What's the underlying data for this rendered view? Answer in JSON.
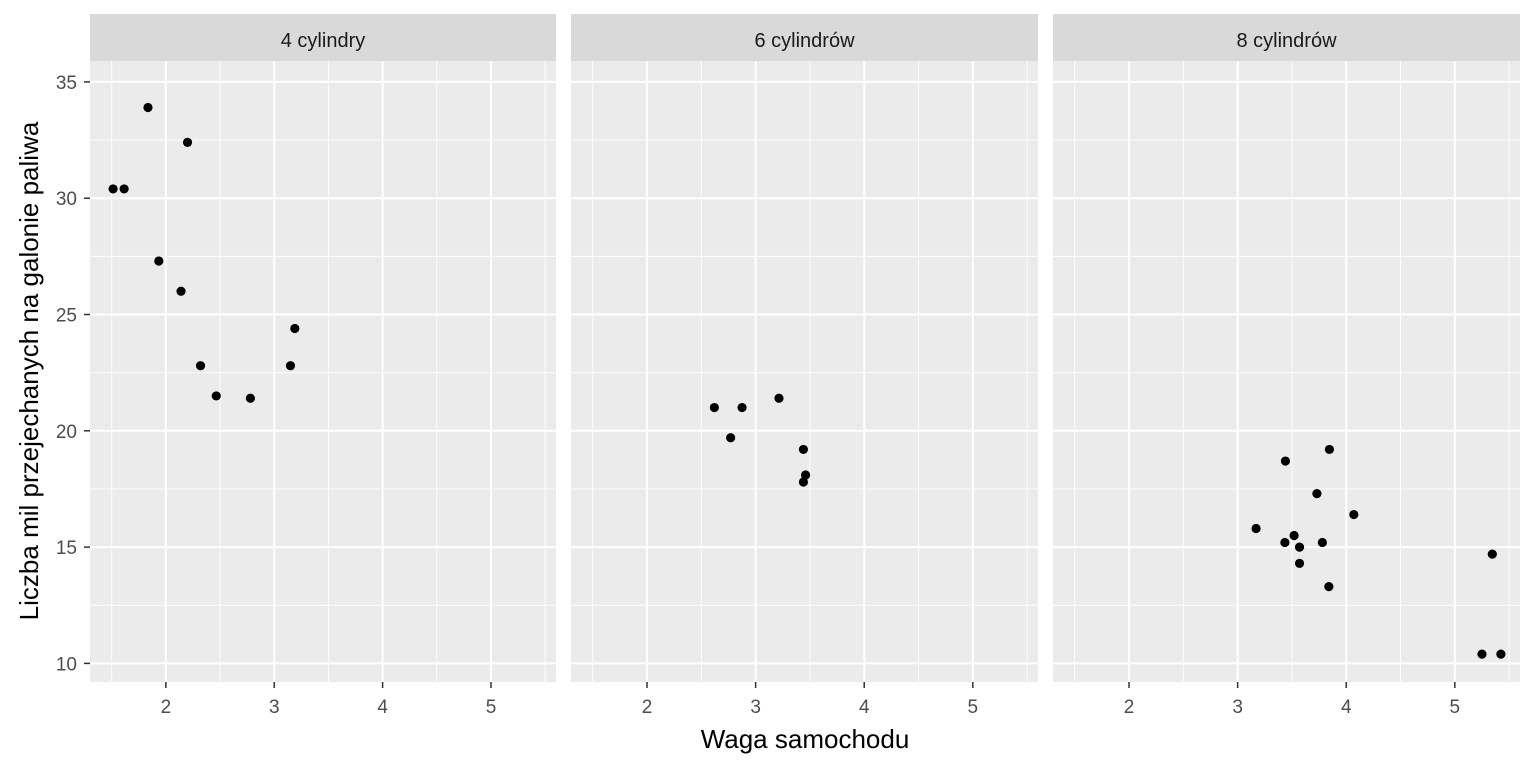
{
  "chart_data": {
    "type": "scatter",
    "facet_by": "cylinders",
    "xlabel": "Waga samochodu",
    "ylabel": "Liczba mil przejechanych na galonie paliwa",
    "xlim": [
      1.3,
      5.6
    ],
    "ylim": [
      9.2,
      35.9
    ],
    "x_ticks": [
      2,
      3,
      4,
      5
    ],
    "y_ticks": [
      10,
      15,
      20,
      25,
      30,
      35
    ],
    "grid": true,
    "colors": {
      "panel_bg": "#ebebeb",
      "strip_bg": "#d9d9d9",
      "grid": "#ffffff",
      "point": "#000000",
      "tick_text": "#4d4d4d"
    },
    "panels": [
      {
        "label": "4 cylindry",
        "points": [
          {
            "x": 1.513,
            "y": 30.4
          },
          {
            "x": 1.615,
            "y": 30.4
          },
          {
            "x": 1.835,
            "y": 33.9
          },
          {
            "x": 1.935,
            "y": 27.3
          },
          {
            "x": 2.14,
            "y": 26.0
          },
          {
            "x": 2.2,
            "y": 32.4
          },
          {
            "x": 2.32,
            "y": 22.8
          },
          {
            "x": 2.465,
            "y": 21.5
          },
          {
            "x": 2.78,
            "y": 21.4
          },
          {
            "x": 3.15,
            "y": 22.8
          },
          {
            "x": 3.19,
            "y": 24.4
          }
        ]
      },
      {
        "label": "6 cylindrów",
        "points": [
          {
            "x": 2.62,
            "y": 21.0
          },
          {
            "x": 2.77,
            "y": 19.7
          },
          {
            "x": 2.875,
            "y": 21.0
          },
          {
            "x": 3.215,
            "y": 21.4
          },
          {
            "x": 3.44,
            "y": 19.2
          },
          {
            "x": 3.44,
            "y": 17.8
          },
          {
            "x": 3.46,
            "y": 18.1
          }
        ]
      },
      {
        "label": "8 cylindrów",
        "points": [
          {
            "x": 3.17,
            "y": 15.8
          },
          {
            "x": 3.435,
            "y": 15.2
          },
          {
            "x": 3.44,
            "y": 18.7
          },
          {
            "x": 3.52,
            "y": 15.5
          },
          {
            "x": 3.57,
            "y": 14.3
          },
          {
            "x": 3.57,
            "y": 15.0
          },
          {
            "x": 3.73,
            "y": 17.3
          },
          {
            "x": 3.78,
            "y": 15.2
          },
          {
            "x": 3.84,
            "y": 13.3
          },
          {
            "x": 3.845,
            "y": 19.2
          },
          {
            "x": 4.07,
            "y": 16.4
          },
          {
            "x": 5.25,
            "y": 10.4
          },
          {
            "x": 5.345,
            "y": 14.7
          },
          {
            "x": 5.424,
            "y": 10.4
          }
        ]
      }
    ]
  }
}
